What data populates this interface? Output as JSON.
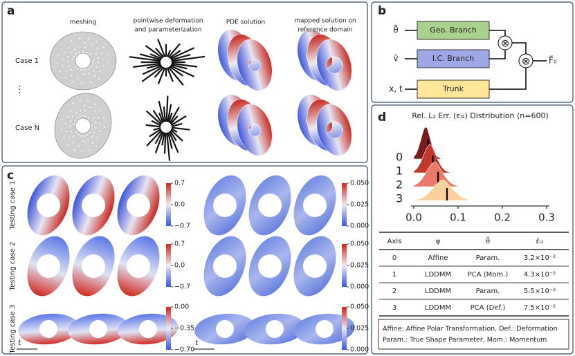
{
  "panels": {
    "a": {
      "label": "a",
      "columns": [
        [
          "meshing"
        ],
        [
          "pointwise deformation",
          "and parameterization"
        ],
        [
          "PDE solution"
        ],
        [
          "mapped solution on",
          "reference domain"
        ]
      ],
      "rows": [
        "Case 1",
        "⋮",
        "Case N"
      ]
    },
    "b": {
      "label": "b",
      "inputs": [
        "θ̃",
        "ṽ",
        "x, t"
      ],
      "branches": [
        "Geo. Branch",
        "I.C. Branch",
        "Trunk"
      ],
      "operator": "⊗",
      "output": "F̃₀"
    },
    "c": {
      "label": "c",
      "rows": [
        "Testing case 1",
        "Testing case 2",
        "Testing case 3"
      ],
      "time_label": "t",
      "colorbars": [
        {
          "lim": [
            -0.7,
            0.7
          ],
          "ticks": [
            0.7,
            {
              "value": 0,
              "label": "0.0"
            },
            {
              "value": -0.7,
              "label": "−0.7"
            }
          ]
        },
        {
          "lim": [
            0,
            0.05
          ],
          "ticks": [
            {
              "value": 0.05,
              "label": "0.050"
            },
            {
              "value": 0.025,
              "label": "0.025"
            },
            {
              "value": 0,
              "label": "0.000"
            }
          ]
        },
        {
          "lim": [
            -0.7,
            0.7
          ],
          "ticks": [
            0.7,
            {
              "value": 0,
              "label": "0.0"
            },
            {
              "value": -0.7,
              "label": "−0.7"
            }
          ]
        },
        {
          "lim": [
            0,
            0.05
          ],
          "ticks": [
            {
              "value": 0.05,
              "label": "0.050"
            },
            {
              "value": 0.025,
              "label": "0.025"
            },
            {
              "value": 0,
              "label": "0.000"
            }
          ]
        },
        {
          "lim": [
            -0.7,
            0
          ],
          "ticks": [
            {
              "value": 0,
              "label": "0.00"
            },
            {
              "value": -0.35,
              "label": "−0.35"
            },
            {
              "value": -0.7,
              "label": "−0.70"
            }
          ]
        },
        {
          "lim": [
            0,
            0.05
          ],
          "ticks": [
            {
              "value": 0.05,
              "label": "0.050"
            },
            {
              "value": 0.025,
              "label": "0.025"
            },
            {
              "value": 0,
              "label": "0.000"
            }
          ]
        }
      ]
    },
    "d": {
      "label": "d",
      "title": "Rel. L₂ Err. (εₗ₂) Distribution (n=600)",
      "ridge": {
        "categories": [
          0,
          1,
          2,
          3
        ],
        "means": [
          0.032,
          0.043,
          0.055,
          0.075
        ],
        "colors": [
          "#7a1a1a",
          "#c0392b",
          "#ec7a6a",
          "#f9cf9b"
        ],
        "xlim": [
          0,
          0.3
        ],
        "xticks": [
          {
            "value": 0,
            "label": "0.0"
          },
          0.1,
          0.2,
          0.3
        ]
      },
      "table": {
        "header": [
          "Axis",
          "φ",
          "θ̃",
          "ε̄ₗ₂"
        ],
        "rows": [
          [
            "0",
            "Affine",
            "Param.",
            "3.2×10⁻²"
          ],
          [
            "1",
            "LDDMM",
            "PCA (Mom.)",
            "4.3×10⁻²"
          ],
          [
            "2",
            "LDDMM",
            "Param.",
            "5.5×10⁻²"
          ],
          [
            "3",
            "LDDMM",
            "PCA (Def.)",
            "7.5×10⁻²"
          ]
        ]
      },
      "note": [
        "Affine: Affine Polar Transformation, Def.: Deformation",
        "Param.: True Shape Parameter, Mom.: Momentum"
      ]
    }
  }
}
